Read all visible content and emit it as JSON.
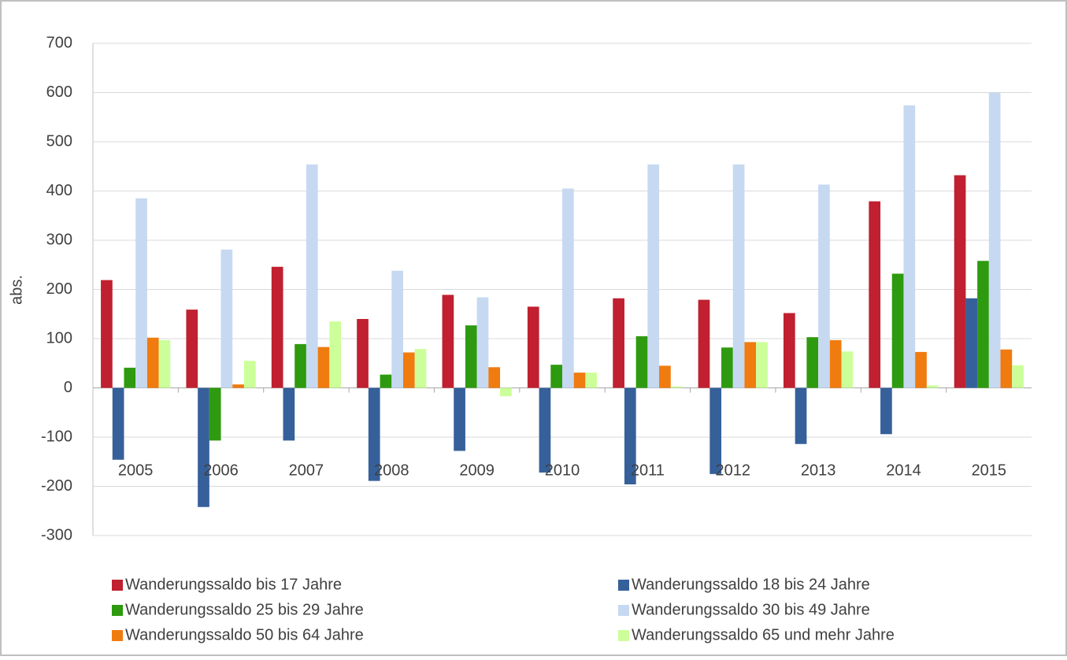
{
  "chart_data": {
    "type": "bar",
    "y_label": "abs.",
    "categories": [
      "2005",
      "2006",
      "2007",
      "2008",
      "2009",
      "2010",
      "2011",
      "2012",
      "2013",
      "2014",
      "2015"
    ],
    "series": [
      {
        "name": "Wanderungssaldo bis 17 Jahre",
        "color": "#c0202f",
        "values": [
          219,
          159,
          246,
          140,
          189,
          165,
          182,
          179,
          152,
          379,
          432
        ]
      },
      {
        "name": "Wanderungssaldo 18 bis 24 Jahre",
        "color": "#36609a",
        "values": [
          -146,
          -242,
          -107,
          -189,
          -128,
          -172,
          -196,
          -175,
          -114,
          -94,
          182
        ]
      },
      {
        "name": "Wanderungssaldo 25 bis 29 Jahre",
        "color": "#2e9a0f",
        "values": [
          41,
          -107,
          89,
          27,
          127,
          47,
          105,
          82,
          103,
          232,
          258
        ]
      },
      {
        "name": "Wanderungssaldo 30 bis 49 Jahre",
        "color": "#c6d9f1",
        "values": [
          385,
          281,
          454,
          238,
          184,
          405,
          454,
          454,
          413,
          574,
          600
        ]
      },
      {
        "name": "Wanderungssaldo 50 bis 64 Jahre",
        "color": "#f07b0f",
        "values": [
          102,
          7,
          83,
          72,
          42,
          31,
          45,
          93,
          97,
          73,
          78
        ]
      },
      {
        "name": "Wanderungssaldo 65 und mehr Jahre",
        "color": "#ccff99",
        "values": [
          97,
          55,
          135,
          79,
          -17,
          31,
          3,
          93,
          74,
          5,
          46
        ]
      }
    ],
    "ylim": [
      -300,
      700
    ],
    "yticks": [
      -300,
      -200,
      -100,
      0,
      100,
      200,
      300,
      400,
      500,
      600,
      700
    ],
    "grid": true
  }
}
